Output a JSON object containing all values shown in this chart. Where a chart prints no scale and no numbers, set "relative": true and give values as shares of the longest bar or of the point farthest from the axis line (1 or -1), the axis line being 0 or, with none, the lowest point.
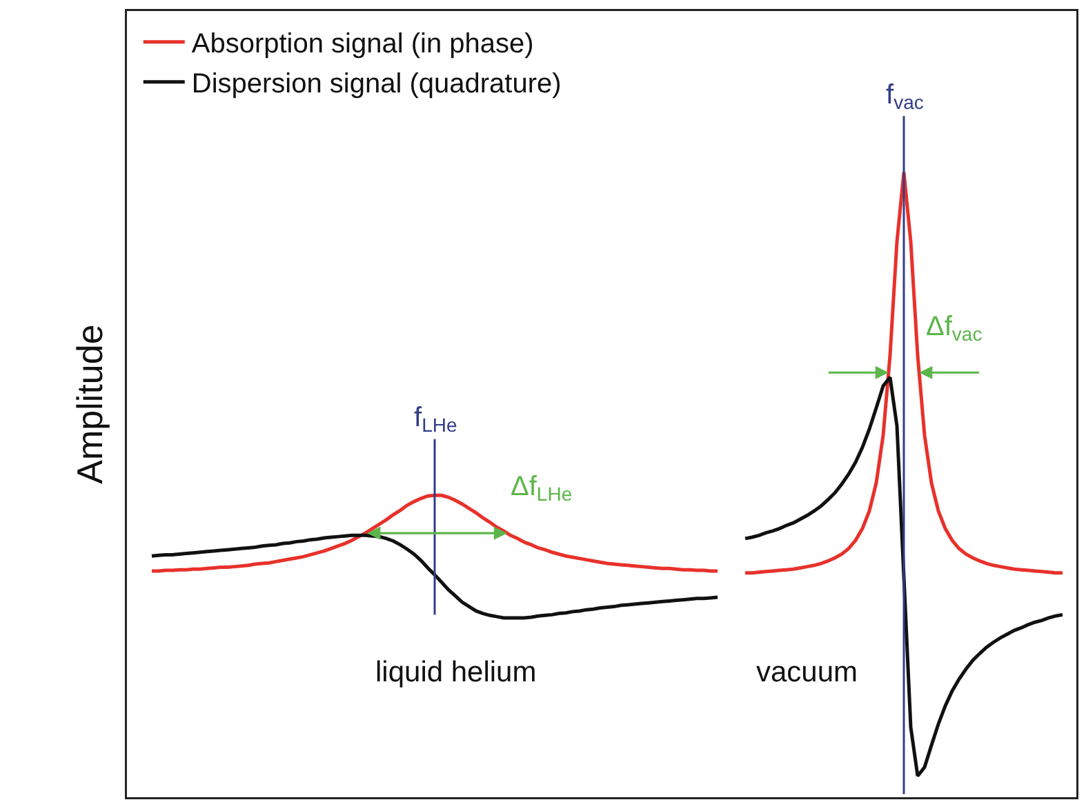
{
  "chart_data": {
    "type": "line",
    "relative": true,
    "ylabel": "Amplitude",
    "legend": "top left",
    "categories": [
      null,
      null,
      null,
      null,
      null,
      null,
      null,
      null,
      null,
      null,
      null,
      null,
      null,
      null,
      null,
      null,
      null,
      null,
      null,
      null,
      null,
      null,
      null,
      null,
      null,
      null,
      null,
      null,
      null,
      null,
      null,
      null,
      null,
      null,
      null,
      null,
      null,
      null,
      null,
      null,
      null,
      null,
      null,
      null,
      null,
      null,
      null,
      null,
      null,
      null,
      null,
      null,
      null,
      null,
      null,
      null,
      null,
      null,
      null,
      null,
      null,
      null,
      null,
      null,
      null,
      null,
      null,
      null,
      null,
      null,
      null,
      null,
      null,
      null,
      null,
      null,
      null,
      null,
      null,
      null,
      null,
      null,
      null,
      null,
      null,
      null,
      null,
      null,
      null,
      null,
      null,
      null,
      null,
      null,
      null,
      null,
      null,
      null,
      null,
      null,
      null,
      null,
      null,
      null,
      null,
      null,
      null,
      null,
      null,
      null,
      null,
      null,
      null,
      null,
      null,
      null,
      null,
      null,
      null,
      null,
      null,
      null,
      null,
      null,
      null,
      null,
      null,
      null,
      null,
      null,
      null,
      null,
      null
    ],
    "series": [
      {
        "name": "Absorption signal (in phase)",
        "color": "#e8312b",
        "values": [
          0.362,
          0.362,
          0.363,
          0.363,
          0.364,
          0.364,
          0.365,
          0.365,
          0.366,
          0.367,
          0.368,
          0.368,
          0.369,
          0.37,
          0.371,
          0.373,
          0.374,
          0.375,
          0.377,
          0.379,
          0.381,
          0.383,
          0.385,
          0.388,
          0.391,
          0.394,
          0.398,
          0.402,
          0.406,
          0.411,
          0.417,
          0.423,
          0.43,
          0.437,
          0.444,
          0.452,
          0.459,
          0.467,
          0.473,
          0.478,
          0.482,
          0.483,
          0.483,
          0.48,
          0.475,
          0.469,
          0.462,
          0.455,
          0.447,
          0.44,
          0.432,
          0.426,
          0.419,
          0.414,
          0.408,
          0.404,
          0.399,
          0.396,
          0.392,
          0.389,
          0.386,
          0.384,
          0.382,
          0.38,
          0.378,
          0.376,
          0.374,
          0.373,
          0.372,
          0.371,
          0.37,
          0.369,
          0.368,
          0.367,
          0.366,
          0.366,
          0.365,
          0.364,
          0.364,
          0.363,
          0.363,
          0.362,
          0.362,
          null,
          null,
          null,
          null,
          null,
          null,
          null,
          null,
          null,
          null,
          null,
          null,
          null,
          null,
          null,
          null,
          null,
          null,
          null,
          null,
          null,
          null,
          null,
          null,
          null,
          null,
          null,
          null,
          null,
          null,
          null,
          null,
          null,
          null,
          null,
          null,
          null,
          null,
          null,
          null,
          null,
          null,
          null,
          null,
          null,
          null,
          null,
          null,
          null,
          null
        ]
      },
      {
        "name": "Dispersion signal (quadrature)",
        "color": "#111111",
        "values": [
          0.386,
          0.387,
          0.388,
          0.388,
          0.389,
          0.39,
          0.391,
          0.392,
          0.393,
          0.394,
          0.395,
          0.396,
          0.397,
          0.398,
          0.399,
          0.4,
          0.402,
          0.403,
          0.404,
          0.406,
          0.407,
          0.409,
          0.41,
          0.412,
          0.413,
          0.415,
          0.416,
          0.417,
          0.418,
          0.419,
          0.419,
          0.419,
          0.418,
          0.417,
          0.414,
          0.41,
          0.404,
          0.397,
          0.389,
          0.379,
          0.367,
          0.356,
          0.344,
          0.332,
          0.322,
          0.312,
          0.305,
          0.298,
          0.294,
          0.291,
          0.289,
          0.287,
          0.287,
          0.287,
          0.287,
          0.288,
          0.29,
          0.291,
          0.292,
          0.294,
          0.295,
          0.297,
          0.298,
          0.3,
          0.301,
          0.303,
          0.304,
          0.305,
          0.307,
          0.308,
          0.309,
          0.31,
          0.311,
          0.312,
          0.313,
          0.314,
          0.315,
          0.316,
          0.317,
          0.318,
          0.318,
          0.319,
          0.32,
          null,
          null,
          null,
          null,
          null,
          null,
          null,
          null,
          null,
          null,
          null,
          null,
          null,
          null,
          null,
          null,
          null,
          null,
          null,
          null,
          null,
          null,
          null,
          null,
          null,
          null,
          null,
          null,
          null,
          null,
          null,
          null,
          null,
          null,
          null,
          null,
          null,
          null,
          null,
          null,
          null,
          null,
          null,
          null,
          null,
          null,
          null,
          null,
          null,
          null
        ]
      },
      {
        "color": "#e8312b",
        "values": [
          null,
          null,
          null,
          null,
          null,
          null,
          null,
          null,
          null,
          null,
          null,
          null,
          null,
          null,
          null,
          null,
          null,
          null,
          null,
          null,
          null,
          null,
          null,
          null,
          null,
          null,
          null,
          null,
          null,
          null,
          null,
          null,
          null,
          null,
          null,
          null,
          null,
          null,
          null,
          null,
          null,
          null,
          null,
          null,
          null,
          null,
          null,
          null,
          null,
          null,
          null,
          null,
          null,
          null,
          null,
          null,
          null,
          null,
          null,
          null,
          null,
          null,
          null,
          null,
          null,
          null,
          null,
          null,
          null,
          null,
          null,
          null,
          null,
          null,
          null,
          null,
          null,
          null,
          null,
          null,
          null,
          null,
          null,
          null,
          null,
          null,
          0.359,
          0.359,
          0.36,
          0.361,
          0.362,
          0.363,
          0.364,
          0.365,
          0.367,
          0.369,
          0.371,
          0.374,
          0.378,
          0.383,
          0.389,
          0.398,
          0.411,
          0.43,
          0.458,
          0.503,
          0.579,
          0.707,
          0.889,
          1.0,
          0.889,
          0.707,
          0.579,
          0.503,
          0.458,
          0.43,
          0.411,
          0.398,
          0.389,
          0.383,
          0.378,
          0.374,
          0.371,
          0.369,
          0.367,
          0.365,
          0.364,
          0.363,
          0.362,
          0.361,
          0.36,
          0.359,
          0.359
        ]
      },
      {
        "color": "#111111",
        "values": [
          null,
          null,
          null,
          null,
          null,
          null,
          null,
          null,
          null,
          null,
          null,
          null,
          null,
          null,
          null,
          null,
          null,
          null,
          null,
          null,
          null,
          null,
          null,
          null,
          null,
          null,
          null,
          null,
          null,
          null,
          null,
          null,
          null,
          null,
          null,
          null,
          null,
          null,
          null,
          null,
          null,
          null,
          null,
          null,
          null,
          null,
          null,
          null,
          null,
          null,
          null,
          null,
          null,
          null,
          null,
          null,
          null,
          null,
          null,
          null,
          null,
          null,
          null,
          null,
          null,
          null,
          null,
          null,
          null,
          null,
          null,
          null,
          null,
          null,
          null,
          null,
          null,
          null,
          null,
          null,
          null,
          null,
          null,
          null,
          null,
          null,
          0.414,
          0.416,
          0.419,
          0.423,
          0.426,
          0.43,
          0.435,
          0.439,
          0.445,
          0.451,
          0.458,
          0.466,
          0.476,
          0.487,
          0.501,
          0.517,
          0.536,
          0.56,
          0.589,
          0.623,
          0.658,
          0.672,
          0.594,
          0.353,
          0.112,
          0.034,
          0.048,
          0.083,
          0.117,
          0.146,
          0.17,
          0.189,
          0.205,
          0.219,
          0.23,
          0.24,
          0.248,
          0.255,
          0.261,
          0.267,
          0.271,
          0.276,
          0.28,
          0.283,
          0.287,
          0.29,
          0.292
        ]
      }
    ],
    "annotations": [
      "f$_{LHe}$",
      "Δf$_{LHe}$",
      "liquid helium",
      "f$_{vac}$",
      "Δf$_{vac}$",
      "vacuum"
    ]
  }
}
